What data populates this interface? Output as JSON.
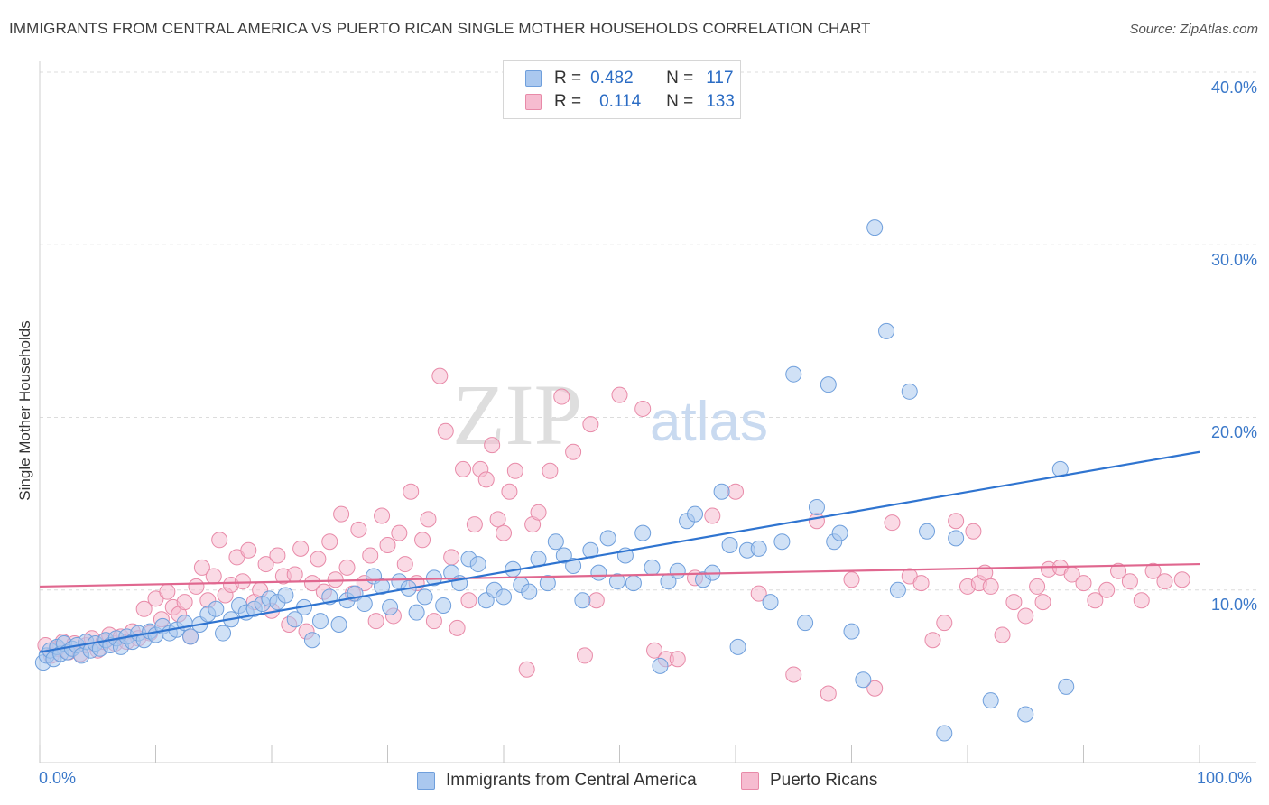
{
  "title": "IMMIGRANTS FROM CENTRAL AMERICA VS PUERTO RICAN SINGLE MOTHER HOUSEHOLDS CORRELATION CHART",
  "source": "Source: ZipAtlas.com",
  "watermark": {
    "zip": "ZIP",
    "atlas": "atlas"
  },
  "legend_top": {
    "rows": [
      {
        "r_label": "R =",
        "r_value": "0.482",
        "n_label": "N =",
        "n_value": "117"
      },
      {
        "r_label": "R =",
        "r_value": "0.114",
        "n_label": "N =",
        "n_value": "133"
      }
    ]
  },
  "colors": {
    "blue_fill": "#aac8ef",
    "blue_stroke": "#6f9fdc",
    "blue_line": "#2f74d0",
    "pink_fill": "#f6bcd0",
    "pink_stroke": "#e88aa8",
    "pink_line": "#e0678f",
    "tick_label": "#3a78c9",
    "grid": "#dcdcdc"
  },
  "chart_data": {
    "type": "scatter",
    "title": "IMMIGRANTS FROM CENTRAL AMERICA VS PUERTO RICAN SINGLE MOTHER HOUSEHOLDS CORRELATION CHART",
    "xlabel": "",
    "ylabel": "Single Mother Households",
    "xlim": [
      0,
      100
    ],
    "ylim": [
      0,
      40
    ],
    "x_tick_labels": [
      "0.0%",
      "100.0%"
    ],
    "y_ticks": [
      10,
      20,
      30,
      40
    ],
    "y_tick_labels": [
      "10.0%",
      "20.0%",
      "30.0%",
      "40.0%"
    ],
    "grid": true,
    "legend_position": "bottom",
    "series": [
      {
        "name": "Immigrants from Central America",
        "color": "#aac8ef",
        "r": 0.482,
        "n": 117,
        "trend": [
          [
            0,
            6.4
          ],
          [
            100,
            18.0
          ]
        ],
        "points": [
          [
            0.3,
            5.8
          ],
          [
            0.6,
            6.2
          ],
          [
            0.9,
            6.5
          ],
          [
            1.2,
            6.0
          ],
          [
            1.5,
            6.7
          ],
          [
            1.8,
            6.3
          ],
          [
            2.1,
            6.9
          ],
          [
            2.4,
            6.4
          ],
          [
            2.8,
            6.6
          ],
          [
            3.2,
            6.8
          ],
          [
            3.6,
            6.2
          ],
          [
            4.0,
            7.0
          ],
          [
            4.4,
            6.5
          ],
          [
            4.8,
            6.9
          ],
          [
            5.2,
            6.6
          ],
          [
            5.7,
            7.1
          ],
          [
            6.1,
            6.8
          ],
          [
            6.6,
            7.2
          ],
          [
            7.0,
            6.7
          ],
          [
            7.5,
            7.3
          ],
          [
            8.0,
            7.0
          ],
          [
            8.5,
            7.5
          ],
          [
            9.0,
            7.1
          ],
          [
            9.5,
            7.6
          ],
          [
            10.0,
            7.4
          ],
          [
            10.6,
            7.9
          ],
          [
            11.2,
            7.5
          ],
          [
            11.8,
            7.7
          ],
          [
            12.5,
            8.1
          ],
          [
            13.0,
            7.3
          ],
          [
            13.8,
            8.0
          ],
          [
            14.5,
            8.6
          ],
          [
            15.2,
            8.9
          ],
          [
            15.8,
            7.5
          ],
          [
            16.5,
            8.3
          ],
          [
            17.2,
            9.1
          ],
          [
            17.8,
            8.7
          ],
          [
            18.5,
            8.9
          ],
          [
            19.2,
            9.2
          ],
          [
            19.8,
            9.5
          ],
          [
            20.5,
            9.3
          ],
          [
            21.2,
            9.7
          ],
          [
            22.0,
            8.3
          ],
          [
            22.8,
            9.0
          ],
          [
            23.5,
            7.1
          ],
          [
            24.2,
            8.2
          ],
          [
            25.0,
            9.6
          ],
          [
            25.8,
            8.0
          ],
          [
            26.5,
            9.4
          ],
          [
            27.2,
            9.8
          ],
          [
            28.0,
            9.2
          ],
          [
            28.8,
            10.8
          ],
          [
            29.5,
            10.2
          ],
          [
            30.2,
            9.0
          ],
          [
            31.0,
            10.5
          ],
          [
            31.8,
            10.1
          ],
          [
            32.5,
            8.7
          ],
          [
            33.2,
            9.6
          ],
          [
            34.0,
            10.7
          ],
          [
            34.8,
            9.1
          ],
          [
            35.5,
            11.0
          ],
          [
            36.2,
            10.4
          ],
          [
            37.0,
            11.8
          ],
          [
            37.8,
            11.5
          ],
          [
            38.5,
            9.4
          ],
          [
            39.2,
            10.0
          ],
          [
            40.0,
            9.6
          ],
          [
            40.8,
            11.2
          ],
          [
            41.5,
            10.3
          ],
          [
            42.2,
            9.9
          ],
          [
            43.0,
            11.8
          ],
          [
            43.8,
            10.4
          ],
          [
            44.5,
            12.8
          ],
          [
            45.2,
            12.0
          ],
          [
            46.0,
            11.4
          ],
          [
            46.8,
            9.4
          ],
          [
            47.5,
            12.3
          ],
          [
            48.2,
            11.0
          ],
          [
            49.0,
            13.0
          ],
          [
            49.8,
            10.5
          ],
          [
            50.5,
            12.0
          ],
          [
            51.2,
            10.4
          ],
          [
            52.0,
            13.3
          ],
          [
            52.8,
            11.3
          ],
          [
            53.5,
            5.6
          ],
          [
            54.2,
            10.5
          ],
          [
            55.0,
            11.1
          ],
          [
            55.8,
            14.0
          ],
          [
            56.5,
            14.4
          ],
          [
            57.2,
            10.6
          ],
          [
            58.0,
            11.0
          ],
          [
            58.8,
            15.7
          ],
          [
            59.5,
            12.6
          ],
          [
            60.2,
            6.7
          ],
          [
            61.0,
            12.3
          ],
          [
            62.0,
            12.4
          ],
          [
            63.0,
            9.3
          ],
          [
            64.0,
            12.8
          ],
          [
            65.0,
            22.5
          ],
          [
            66.0,
            8.1
          ],
          [
            67.0,
            14.8
          ],
          [
            68.0,
            21.9
          ],
          [
            68.5,
            12.8
          ],
          [
            69.0,
            13.3
          ],
          [
            70.0,
            7.6
          ],
          [
            71.0,
            4.8
          ],
          [
            72.0,
            31.0
          ],
          [
            73.0,
            25.0
          ],
          [
            74.0,
            10.0
          ],
          [
            75.0,
            21.5
          ],
          [
            76.5,
            13.4
          ],
          [
            78.0,
            1.7
          ],
          [
            79.0,
            13.0
          ],
          [
            82.0,
            3.6
          ],
          [
            85.0,
            2.8
          ],
          [
            88.0,
            17.0
          ],
          [
            88.5,
            4.4
          ]
        ]
      },
      {
        "name": "Puerto Ricans",
        "color": "#f6bcd0",
        "r": 0.114,
        "n": 133,
        "trend": [
          [
            0,
            10.2
          ],
          [
            100,
            11.5
          ]
        ],
        "points": [
          [
            0.5,
            6.8
          ],
          [
            1.0,
            6.2
          ],
          [
            1.5,
            6.6
          ],
          [
            2.0,
            7.0
          ],
          [
            2.5,
            6.4
          ],
          [
            3.0,
            6.9
          ],
          [
            3.5,
            6.3
          ],
          [
            4.0,
            6.8
          ],
          [
            4.5,
            7.2
          ],
          [
            5.0,
            6.5
          ],
          [
            5.5,
            7.0
          ],
          [
            6.0,
            7.4
          ],
          [
            6.5,
            6.9
          ],
          [
            7.0,
            7.3
          ],
          [
            7.5,
            7.0
          ],
          [
            8.0,
            7.6
          ],
          [
            8.5,
            7.2
          ],
          [
            9.0,
            8.9
          ],
          [
            9.5,
            7.5
          ],
          [
            10.0,
            9.5
          ],
          [
            10.5,
            8.3
          ],
          [
            11.0,
            9.9
          ],
          [
            11.5,
            9.0
          ],
          [
            12.0,
            8.6
          ],
          [
            12.5,
            9.3
          ],
          [
            13.0,
            7.3
          ],
          [
            13.5,
            10.2
          ],
          [
            14.0,
            11.3
          ],
          [
            14.5,
            9.4
          ],
          [
            15.0,
            10.8
          ],
          [
            15.5,
            12.9
          ],
          [
            16.0,
            9.7
          ],
          [
            16.5,
            10.3
          ],
          [
            17.0,
            11.9
          ],
          [
            17.5,
            10.5
          ],
          [
            18.0,
            12.3
          ],
          [
            18.5,
            9.3
          ],
          [
            19.0,
            10.0
          ],
          [
            19.5,
            11.5
          ],
          [
            20.0,
            8.8
          ],
          [
            20.5,
            12.0
          ],
          [
            21.0,
            10.8
          ],
          [
            21.5,
            8.0
          ],
          [
            22.0,
            10.9
          ],
          [
            22.5,
            12.4
          ],
          [
            23.0,
            7.6
          ],
          [
            23.5,
            10.4
          ],
          [
            24.0,
            11.8
          ],
          [
            24.5,
            9.9
          ],
          [
            25.0,
            12.8
          ],
          [
            25.5,
            10.6
          ],
          [
            26.0,
            14.4
          ],
          [
            26.5,
            11.3
          ],
          [
            27.0,
            9.8
          ],
          [
            27.5,
            13.5
          ],
          [
            28.0,
            10.4
          ],
          [
            28.5,
            12.0
          ],
          [
            29.0,
            8.2
          ],
          [
            29.5,
            14.3
          ],
          [
            30.0,
            12.6
          ],
          [
            30.5,
            8.5
          ],
          [
            31.0,
            13.3
          ],
          [
            31.5,
            11.5
          ],
          [
            32.0,
            15.7
          ],
          [
            32.5,
            10.4
          ],
          [
            33.0,
            12.9
          ],
          [
            33.5,
            14.1
          ],
          [
            34.0,
            8.2
          ],
          [
            34.5,
            22.4
          ],
          [
            35.0,
            19.2
          ],
          [
            35.5,
            11.9
          ],
          [
            36.0,
            7.8
          ],
          [
            36.5,
            17.0
          ],
          [
            37.0,
            9.4
          ],
          [
            37.5,
            13.8
          ],
          [
            38.0,
            17.0
          ],
          [
            38.5,
            16.4
          ],
          [
            39.0,
            18.4
          ],
          [
            39.5,
            14.1
          ],
          [
            40.0,
            13.3
          ],
          [
            40.5,
            15.7
          ],
          [
            41.0,
            16.9
          ],
          [
            42.0,
            5.4
          ],
          [
            42.5,
            13.8
          ],
          [
            43.0,
            14.5
          ],
          [
            44.0,
            16.9
          ],
          [
            45.0,
            21.2
          ],
          [
            46.0,
            18.0
          ],
          [
            47.0,
            6.2
          ],
          [
            47.5,
            19.6
          ],
          [
            48.0,
            9.4
          ],
          [
            50.0,
            21.3
          ],
          [
            52.0,
            20.5
          ],
          [
            53.0,
            6.5
          ],
          [
            54.0,
            6.0
          ],
          [
            55.0,
            6.0
          ],
          [
            56.5,
            10.7
          ],
          [
            58.0,
            14.3
          ],
          [
            60.0,
            15.7
          ],
          [
            62.0,
            9.8
          ],
          [
            65.0,
            5.1
          ],
          [
            67.0,
            14.0
          ],
          [
            68.0,
            4.0
          ],
          [
            70.0,
            10.6
          ],
          [
            72.0,
            4.3
          ],
          [
            73.5,
            13.9
          ],
          [
            75.0,
            10.8
          ],
          [
            76.0,
            10.4
          ],
          [
            77.0,
            7.1
          ],
          [
            78.0,
            8.1
          ],
          [
            79.0,
            14.0
          ],
          [
            80.0,
            10.2
          ],
          [
            80.5,
            13.4
          ],
          [
            81.0,
            10.4
          ],
          [
            81.5,
            11.0
          ],
          [
            82.0,
            10.2
          ],
          [
            83.0,
            7.4
          ],
          [
            84.0,
            9.3
          ],
          [
            85.0,
            8.5
          ],
          [
            86.0,
            10.2
          ],
          [
            86.5,
            9.3
          ],
          [
            87.0,
            11.2
          ],
          [
            88.0,
            11.3
          ],
          [
            89.0,
            10.9
          ],
          [
            90.0,
            10.4
          ],
          [
            91.0,
            9.4
          ],
          [
            92.0,
            10.0
          ],
          [
            93.0,
            11.1
          ],
          [
            94.0,
            10.5
          ],
          [
            95.0,
            9.4
          ],
          [
            96.0,
            11.1
          ],
          [
            97.0,
            10.5
          ],
          [
            98.5,
            10.6
          ]
        ]
      }
    ]
  }
}
